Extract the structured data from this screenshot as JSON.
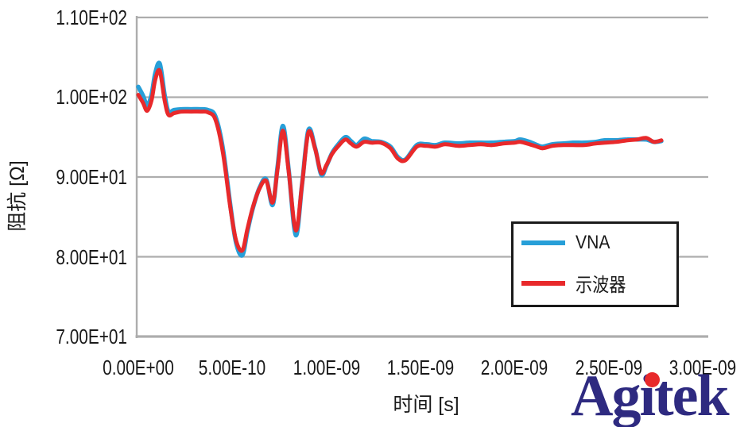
{
  "chart_data": {
    "type": "line",
    "title": "",
    "xlabel": "时间 [s]",
    "ylabel": "阻抗 [Ω]",
    "x_unit": "ns",
    "xlim_ns": [
      0,
      3.03
    ],
    "ylim": [
      70,
      110
    ],
    "grid": "horizontal-only",
    "axis_color": "#ADADAD",
    "text_color": "#1a1a1a",
    "x_ticks_ns": [
      0,
      0.5,
      1.0,
      1.5,
      2.0,
      2.5,
      3.0
    ],
    "x_tick_labels": [
      "0.00E+00",
      "5.00E-10",
      "1.00E-09",
      "1.50E-09",
      "2.00E-09",
      "2.50E-09",
      "3.00E-09"
    ],
    "y_ticks": [
      110,
      100,
      90,
      80,
      70
    ],
    "y_tick_labels": [
      "1.10E+02",
      "1.00E+02",
      "9.00E+01",
      "8.00E+01",
      "7.00E+01"
    ],
    "legend": {
      "position": "center-right",
      "border_color": "#1a1a1a",
      "background": "#ffffff"
    },
    "x_ns": [
      0.0,
      0.025,
      0.047,
      0.07,
      0.09,
      0.114,
      0.14,
      0.16,
      0.19,
      0.23,
      0.28,
      0.33,
      0.37,
      0.41,
      0.45,
      0.49,
      0.52,
      0.553,
      0.58,
      0.61,
      0.645,
      0.68,
      0.714,
      0.74,
      0.769,
      0.8,
      0.837,
      0.87,
      0.904,
      0.94,
      0.972,
      1.0,
      1.03,
      1.06,
      1.1,
      1.13,
      1.16,
      1.2,
      1.24,
      1.29,
      1.34,
      1.38,
      1.42,
      1.48,
      1.53,
      1.58,
      1.63,
      1.7,
      1.76,
      1.82,
      1.88,
      1.94,
      2.0,
      2.03,
      2.08,
      2.12,
      2.15,
      2.2,
      2.26,
      2.31,
      2.37,
      2.43,
      2.48,
      2.54,
      2.6,
      2.65,
      2.7,
      2.74,
      2.78
    ],
    "series": [
      {
        "name": "VNA",
        "color": "#279FD8",
        "stroke_width": 5.5,
        "values": [
          101.3,
          100.2,
          99.0,
          100.3,
          103.0,
          104.2,
          100.3,
          98.2,
          98.4,
          98.5,
          98.5,
          98.5,
          98.4,
          97.6,
          93.5,
          86.3,
          81.7,
          80.2,
          83.2,
          86.2,
          88.7,
          89.7,
          86.5,
          91.3,
          96.4,
          90.7,
          82.7,
          89.0,
          95.9,
          93.6,
          90.3,
          91.4,
          93.0,
          94.0,
          95.0,
          94.5,
          94.0,
          94.8,
          94.5,
          94.4,
          93.8,
          92.5,
          92.2,
          94.0,
          94.1,
          94.0,
          94.3,
          94.2,
          94.3,
          94.3,
          94.3,
          94.4,
          94.5,
          94.7,
          94.4,
          94.0,
          93.8,
          94.1,
          94.2,
          94.3,
          94.3,
          94.4,
          94.6,
          94.6,
          94.7,
          94.7,
          94.7,
          94.4,
          94.5
        ]
      },
      {
        "name": "示波器",
        "color": "#E8292B",
        "stroke_width": 5,
        "values": [
          100.3,
          99.3,
          98.3,
          99.6,
          102.2,
          103.3,
          99.6,
          97.8,
          98.0,
          98.2,
          98.2,
          98.2,
          98.1,
          97.2,
          93.0,
          86.0,
          82.0,
          80.8,
          83.5,
          86.3,
          88.6,
          89.5,
          86.8,
          91.0,
          95.8,
          90.5,
          83.3,
          89.0,
          95.6,
          93.5,
          90.5,
          91.5,
          92.9,
          93.8,
          94.7,
          94.2,
          93.8,
          94.4,
          94.3,
          94.3,
          93.6,
          92.3,
          92.1,
          93.8,
          93.9,
          93.8,
          94.1,
          93.9,
          94.0,
          94.1,
          94.0,
          94.2,
          94.3,
          94.4,
          94.1,
          93.8,
          93.6,
          93.9,
          94.0,
          94.0,
          94.0,
          94.2,
          94.3,
          94.4,
          94.6,
          94.7,
          94.9,
          94.4,
          94.6
        ]
      }
    ]
  },
  "logo": {
    "text": "Agitek",
    "color": "#2E2A80",
    "dot_color": "#E8292B"
  }
}
